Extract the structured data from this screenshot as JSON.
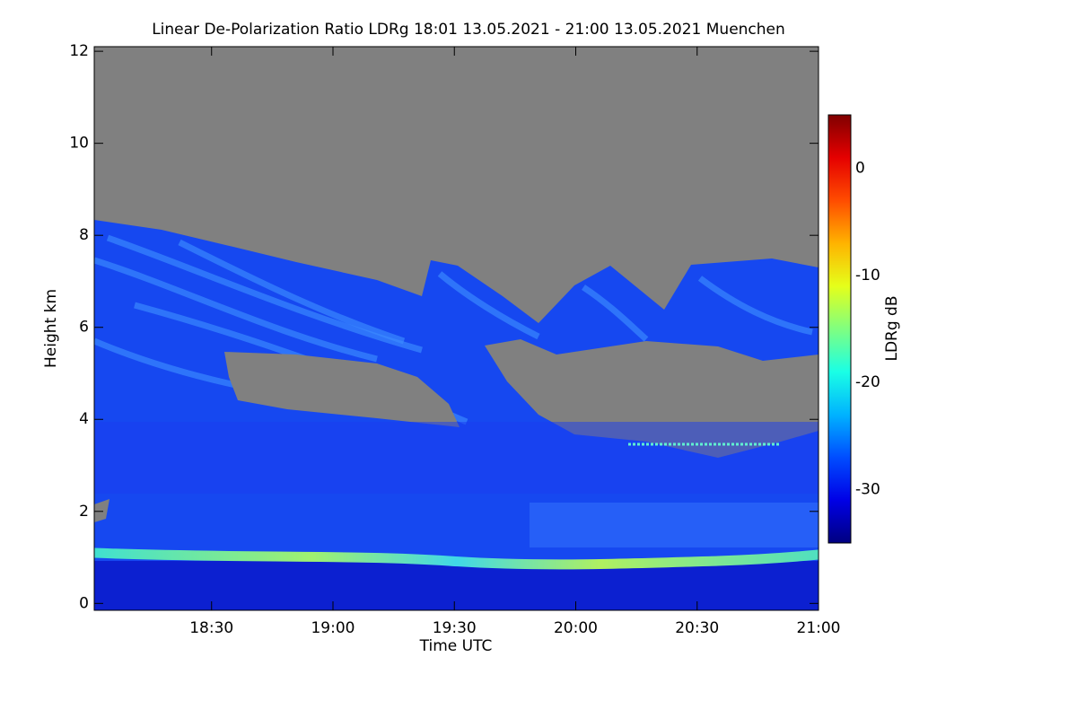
{
  "chart_data": {
    "type": "heatmap",
    "title": "Linear De-Polarization Ratio LDRg   18:01 13.05.2021 - 21:00 13.05.2021 Muenchen",
    "x_label": "Time UTC",
    "y_label": "Height km",
    "xlim": [
      18.0167,
      21.0
    ],
    "xticks": [
      {
        "value": 18.5,
        "label": "18:30"
      },
      {
        "value": 19.0,
        "label": "19:00"
      },
      {
        "value": 19.5,
        "label": "19:30"
      },
      {
        "value": 20.0,
        "label": "20:00"
      },
      {
        "value": 20.5,
        "label": "20:30"
      },
      {
        "value": 21.0,
        "label": "21:00"
      }
    ],
    "ylim": [
      -0.15,
      12.1
    ],
    "yticks": [
      0,
      2,
      4,
      6,
      8,
      10,
      12
    ],
    "colorbar_label": "LDRg dB",
    "colormap": "jet",
    "clim": [
      -35,
      5
    ],
    "cticks": [
      -30,
      -20,
      -10,
      0
    ]
  }
}
